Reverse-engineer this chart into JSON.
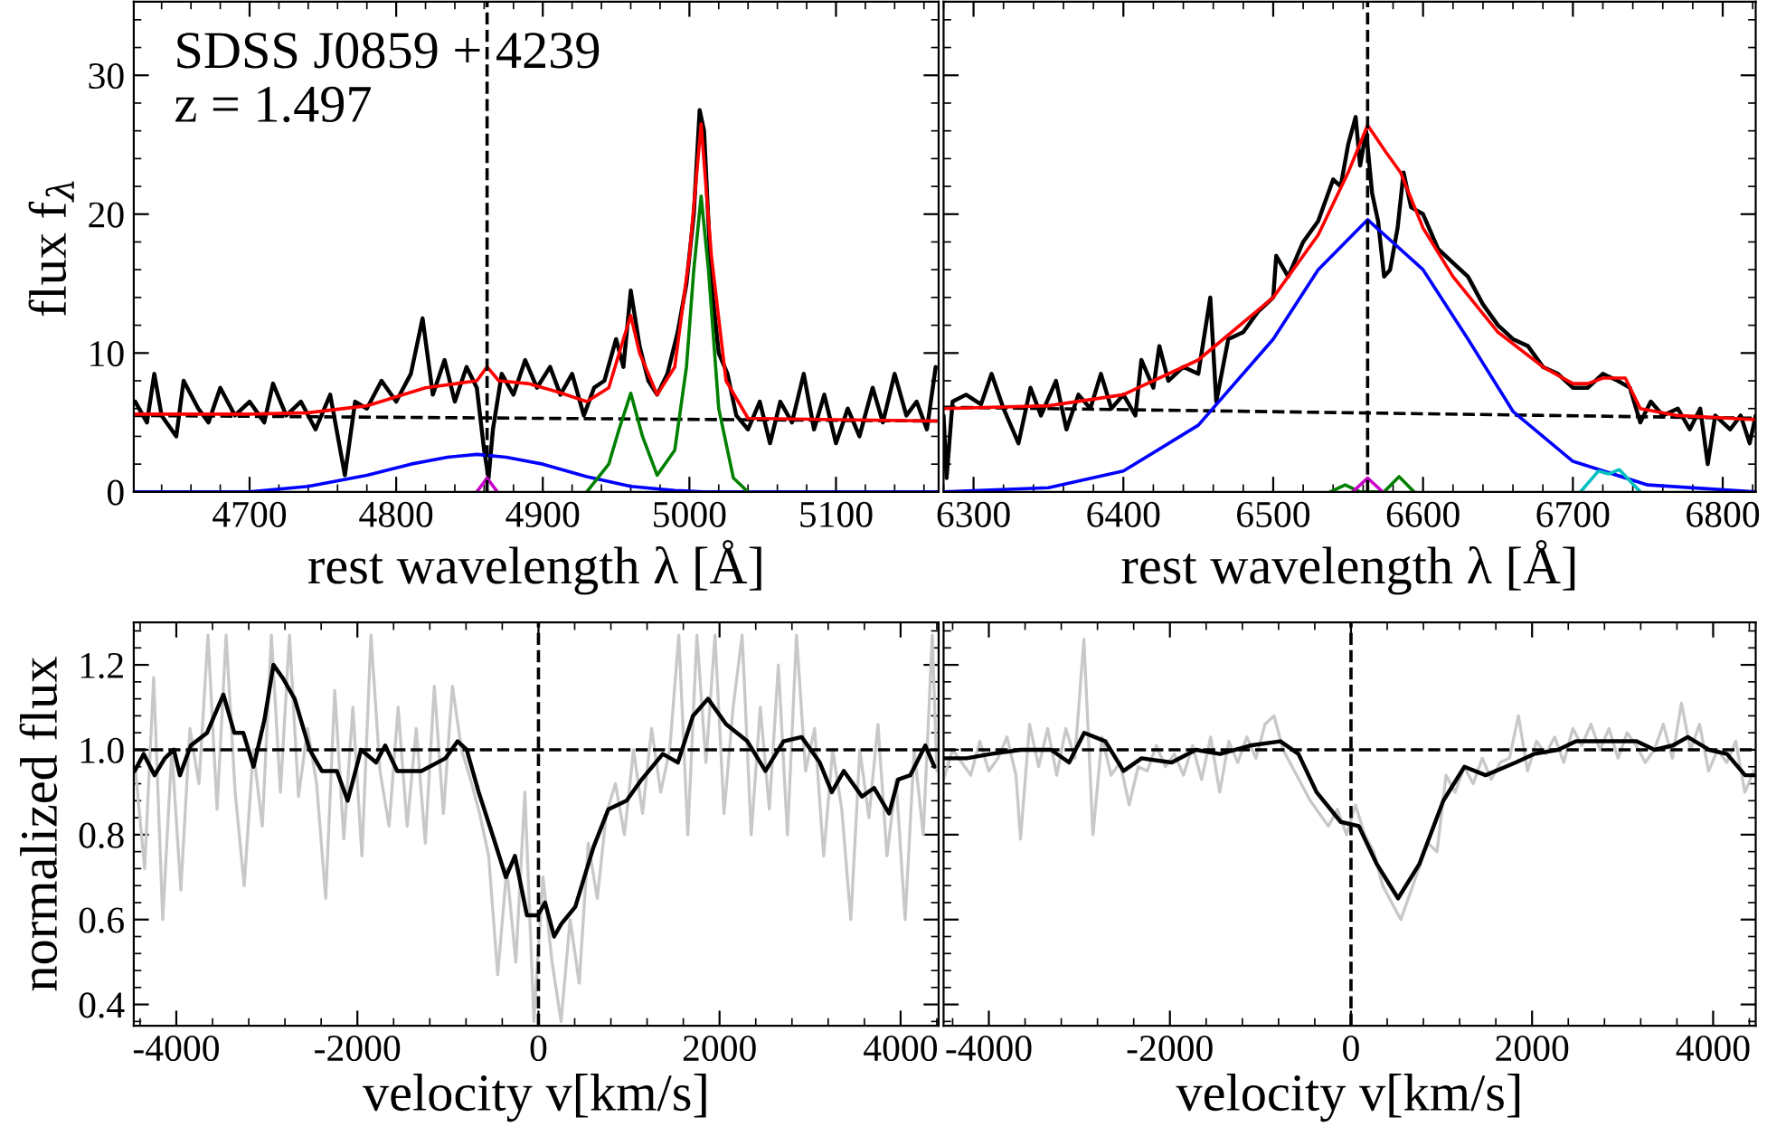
{
  "chart_data": [
    {
      "type": "line",
      "xlabel": "rest wavelength λ [Å]",
      "ylabel": "flux f$_{λ}$",
      "xlim": [
        4621,
        5170
      ],
      "ylim": [
        0,
        35.3
      ],
      "xticks": [
        4700,
        4800,
        4900,
        5000,
        5100
      ],
      "yticks": [
        0,
        10,
        20,
        30
      ],
      "grid": false,
      "marker": "none",
      "annotations": [
        "SDSS J0859 + 4239",
        "z = 1.497"
      ],
      "ref_lines": [
        {
          "axis": "x",
          "value": 4862,
          "color": "#000000",
          "line_style": "dashed"
        }
      ],
      "series": [
        {
          "color": "#000000",
          "x": [
            4622,
            4630,
            4635,
            4640,
            4650,
            4655,
            4665,
            4672,
            4680,
            4690,
            4700,
            4710,
            4716,
            4725,
            4735,
            4745,
            4755,
            4765,
            4772,
            4780,
            4790,
            4800,
            4810,
            4818,
            4825,
            4833,
            4840,
            4848,
            4855,
            4860,
            4863,
            4866,
            4872,
            4880,
            4888,
            4896,
            4905,
            4912,
            4920,
            4928,
            4935,
            4942,
            4950,
            4955,
            4960,
            4966,
            4972,
            4978,
            4985,
            4992,
            4998,
            5003,
            5007,
            5010,
            5015,
            5020,
            5026,
            5032,
            5040,
            5048,
            5055,
            5062,
            5070,
            5078,
            5085,
            5092,
            5100,
            5108,
            5116,
            5125,
            5132,
            5140,
            5148,
            5155,
            5162,
            5168
          ],
          "values": [
            6.5,
            5.0,
            8.5,
            5.5,
            4.0,
            8.0,
            6.0,
            5.0,
            7.5,
            5.5,
            6.5,
            5.0,
            7.8,
            5.5,
            6.5,
            4.5,
            7.0,
            1.2,
            6.5,
            6.0,
            8.0,
            6.5,
            8.5,
            12.5,
            7.0,
            9.5,
            6.5,
            9.0,
            7.5,
            3.0,
            1.0,
            4.5,
            8.5,
            7.0,
            9.5,
            7.5,
            9.0,
            7.0,
            8.5,
            5.5,
            7.5,
            8.0,
            11.0,
            9.0,
            14.5,
            10.5,
            8.0,
            7.0,
            8.5,
            11.5,
            15.0,
            20.0,
            27.5,
            26.0,
            15.0,
            10.0,
            8.5,
            5.5,
            4.5,
            6.5,
            3.5,
            6.5,
            5.0,
            8.5,
            4.5,
            7.0,
            3.5,
            6.0,
            4.0,
            7.5,
            5.0,
            8.5,
            5.5,
            6.5,
            4.5,
            9.0
          ]
        },
        {
          "color": "#000000",
          "line_style": "dashed",
          "x": [
            4621,
            5170
          ],
          "values": [
            5.5,
            5.1
          ]
        },
        {
          "color": "#0000ff",
          "x": [
            4621,
            4700,
            4740,
            4780,
            4810,
            4835,
            4855,
            4875,
            4900,
            4930,
            4960,
            4990,
            5010,
            5170
          ],
          "values": [
            0,
            0,
            0.4,
            1.2,
            2.0,
            2.5,
            2.7,
            2.5,
            2.0,
            1.1,
            0.4,
            0.1,
            0,
            0
          ]
        },
        {
          "color": "#008000",
          "x": [
            4930,
            4945,
            4952,
            4960,
            4968,
            4978,
            4990,
            4998,
            5003,
            5008,
            5013,
            5020,
            5030,
            5040
          ],
          "values": [
            0,
            2.0,
            4.5,
            7.1,
            4.0,
            1.2,
            3.0,
            9.0,
            16.0,
            21.3,
            16.0,
            6.0,
            1.0,
            0
          ]
        },
        {
          "color": "#cc00cc",
          "x": [
            4855,
            4862,
            4869
          ],
          "values": [
            0,
            1.0,
            0
          ]
        },
        {
          "color": "#ff0000",
          "x": [
            4621,
            4700,
            4740,
            4780,
            4820,
            4855,
            4862,
            4870,
            4890,
            4910,
            4930,
            4945,
            4955,
            4960,
            4966,
            4978,
            4990,
            5000,
            5008,
            5015,
            5025,
            5040,
            5100,
            5170
          ],
          "values": [
            5.6,
            5.6,
            5.7,
            6.2,
            7.5,
            8.0,
            9.0,
            8.0,
            7.8,
            7.2,
            6.5,
            7.5,
            11.0,
            12.7,
            10.0,
            7.0,
            9.0,
            17.0,
            26.5,
            17.0,
            8.0,
            5.3,
            5.2,
            5.1
          ]
        }
      ]
    },
    {
      "type": "line",
      "xlabel": "rest wavelength λ [Å]",
      "xlim": [
        6280,
        6822
      ],
      "ylim": [
        0,
        35.3
      ],
      "xticks": [
        6300,
        6400,
        6500,
        6600,
        6700,
        6800
      ],
      "yticks": [
        0,
        10,
        20,
        30
      ],
      "tick_labels": "x",
      "grid": false,
      "marker": "none",
      "ref_lines": [
        {
          "axis": "x",
          "value": 6563,
          "color": "#000000",
          "line_style": "dashed"
        }
      ],
      "series": [
        {
          "color": "#000000",
          "x": [
            6280,
            6282,
            6286,
            6295,
            6305,
            6312,
            6320,
            6330,
            6338,
            6345,
            6355,
            6362,
            6370,
            6378,
            6385,
            6392,
            6400,
            6408,
            6412,
            6420,
            6424,
            6430,
            6440,
            6450,
            6458,
            6462,
            6470,
            6480,
            6490,
            6500,
            6502,
            6510,
            6520,
            6530,
            6540,
            6545,
            6550,
            6555,
            6558,
            6562,
            6566,
            6570,
            6574,
            6578,
            6583,
            6587,
            6592,
            6600,
            6610,
            6620,
            6630,
            6640,
            6650,
            6660,
            6670,
            6680,
            6690,
            6700,
            6710,
            6720,
            6730,
            6738,
            6745,
            6752,
            6760,
            6770,
            6778,
            6785,
            6790,
            6795,
            6805,
            6812,
            6818,
            6822
          ],
          "values": [
            5.5,
            1.0,
            6.5,
            7.0,
            6.3,
            8.5,
            6.0,
            3.5,
            7.5,
            5.5,
            8.0,
            4.5,
            7.0,
            6.0,
            8.5,
            6.0,
            7.0,
            5.5,
            9.5,
            7.5,
            10.5,
            8.0,
            9.0,
            8.5,
            14.0,
            6.5,
            11.0,
            11.5,
            13.0,
            14.0,
            17.0,
            15.5,
            18.0,
            19.5,
            22.5,
            22.0,
            25.0,
            27.0,
            23.5,
            26.0,
            21.5,
            19.5,
            15.5,
            16.0,
            19.0,
            23.0,
            20.5,
            20.0,
            17.5,
            16.5,
            15.5,
            13.5,
            12.0,
            11.0,
            10.5,
            9.0,
            8.5,
            7.5,
            7.5,
            8.5,
            8.0,
            7.5,
            5.0,
            6.5,
            5.5,
            6.0,
            4.5,
            6.0,
            2.0,
            5.5,
            4.5,
            5.5,
            3.5,
            5.5
          ]
        },
        {
          "color": "#000000",
          "line_style": "dashed",
          "x": [
            6280,
            6822
          ],
          "values": [
            6.1,
            5.3
          ]
        },
        {
          "color": "#0000ff",
          "x": [
            6280,
            6350,
            6400,
            6450,
            6500,
            6530,
            6563,
            6600,
            6630,
            6660,
            6700,
            6750,
            6822
          ],
          "values": [
            0,
            0.3,
            1.5,
            4.8,
            11.0,
            16.0,
            19.6,
            16.0,
            11.0,
            5.8,
            2.2,
            0.5,
            0
          ]
        },
        {
          "color": "#008000",
          "x": [
            6538,
            6548,
            6558,
            6574,
            6584,
            6594
          ],
          "values": [
            0,
            0.5,
            0,
            0,
            1.1,
            0
          ]
        },
        {
          "color": "#cc00cc",
          "x": [
            6553,
            6563,
            6573
          ],
          "values": [
            0,
            1.0,
            0
          ]
        },
        {
          "color": "#00bfbf",
          "x": [
            6705,
            6717,
            6724,
            6731,
            6745
          ],
          "values": [
            0,
            1.5,
            1.3,
            1.6,
            0
          ]
        },
        {
          "color": "#ff0000",
          "x": [
            6280,
            6350,
            6400,
            6450,
            6500,
            6530,
            6550,
            6563,
            6575,
            6585,
            6600,
            6620,
            6650,
            6680,
            6700,
            6710,
            6720,
            6735,
            6745,
            6770,
            6822
          ],
          "values": [
            6.0,
            6.2,
            7.0,
            9.5,
            14.0,
            18.5,
            23.0,
            26.4,
            24.5,
            23.0,
            19.0,
            15.5,
            11.5,
            9.0,
            7.8,
            7.8,
            8.2,
            8.2,
            6.0,
            5.5,
            5.2
          ]
        }
      ]
    },
    {
      "type": "line",
      "xlabel": "velocity v[km/s]",
      "ylabel": "normalized flux",
      "xlim": [
        -4470,
        4420
      ],
      "ylim": [
        0.35,
        1.3
      ],
      "xticks": [
        -4000,
        -2000,
        0,
        2000,
        4000
      ],
      "yticks": [
        0.4,
        0.6,
        0.8,
        {
          "value": 1.0,
          "label": "1.0"
        },
        1.2
      ],
      "grid": false,
      "marker": "none",
      "ref_lines": [
        {
          "axis": "y",
          "value": 1.0,
          "color": "#000000",
          "line_style": "dashed"
        },
        {
          "axis": "x",
          "value": 0,
          "color": "#000000",
          "line_style": "dashed"
        }
      ],
      "series": [
        {
          "color": "#c8c8c8",
          "x": [
            -4450,
            -4350,
            -4250,
            -4150,
            -4050,
            -3950,
            -3850,
            -3750,
            -3650,
            -3550,
            -3450,
            -3350,
            -3250,
            -3150,
            -3050,
            -2950,
            -2850,
            -2750,
            -2650,
            -2550,
            -2450,
            -2350,
            -2250,
            -2150,
            -2050,
            -1950,
            -1850,
            -1750,
            -1650,
            -1550,
            -1450,
            -1350,
            -1250,
            -1150,
            -1050,
            -950,
            -850,
            -750,
            -650,
            -550,
            -450,
            -350,
            -250,
            -150,
            -50,
            50,
            150,
            250,
            350,
            450,
            550,
            650,
            750,
            850,
            950,
            1050,
            1150,
            1250,
            1350,
            1450,
            1550,
            1650,
            1750,
            1850,
            1950,
            2050,
            2150,
            2250,
            2350,
            2450,
            2550,
            2650,
            2750,
            2850,
            2950,
            3050,
            3150,
            3250,
            3350,
            3450,
            3550,
            3650,
            3750,
            3850,
            3950,
            4050,
            4150,
            4250,
            4350,
            4400
          ],
          "values": [
            0.95,
            0.72,
            1.17,
            0.6,
            1.0,
            0.67,
            1.05,
            0.92,
            1.27,
            0.86,
            1.27,
            0.9,
            0.68,
            1.0,
            0.82,
            1.27,
            0.9,
            1.27,
            0.89,
            1.05,
            0.92,
            0.65,
            1.14,
            0.79,
            1.1,
            0.75,
            1.27,
            0.95,
            0.82,
            1.1,
            0.82,
            1.05,
            0.78,
            1.15,
            0.85,
            1.15,
            1.0,
            0.93,
            0.85,
            0.75,
            0.47,
            0.72,
            0.5,
            0.9,
            0.36,
            0.7,
            0.5,
            0.36,
            0.6,
            0.45,
            0.78,
            0.65,
            0.85,
            0.92,
            0.8,
            1.0,
            0.85,
            1.05,
            0.9,
            1.0,
            1.27,
            0.8,
            1.27,
            0.97,
            1.27,
            0.85,
            1.1,
            1.27,
            0.8,
            1.1,
            0.86,
            1.2,
            0.8,
            1.27,
            0.95,
            1.05,
            0.75,
            1.0,
            0.86,
            0.6,
            1.0,
            0.84,
            1.06,
            0.75,
            0.93,
            0.6,
            1.0,
            0.8,
            1.27,
            0.95
          ]
        },
        {
          "color": "#000000",
          "x": [
            -4460,
            -4360,
            -4240,
            -4127,
            -4027,
            -3960,
            -3840,
            -3660,
            -3480,
            -3360,
            -3260,
            -3147,
            -3027,
            -2927,
            -2827,
            -2693,
            -2527,
            -2393,
            -2227,
            -2107,
            -1960,
            -1793,
            -1693,
            -1560,
            -1293,
            -1027,
            -893,
            -793,
            -660,
            -493,
            -360,
            -260,
            -127,
            -7,
            73,
            173,
            253,
            407,
            607,
            773,
            973,
            1140,
            1373,
            1540,
            1707,
            1873,
            2073,
            2307,
            2507,
            2707,
            2907,
            3107,
            3240,
            3373,
            3573,
            3707,
            3873,
            3973,
            4107,
            4273,
            4373
          ],
          "values": [
            0.95,
            0.99,
            0.94,
            0.98,
            1.0,
            0.94,
            1.01,
            1.04,
            1.13,
            1.04,
            1.04,
            0.96,
            1.07,
            1.2,
            1.17,
            1.12,
            1.0,
            0.95,
            0.95,
            0.88,
            1.0,
            0.97,
            1.01,
            0.95,
            0.95,
            0.98,
            1.02,
            1.0,
            0.9,
            0.79,
            0.7,
            0.75,
            0.61,
            0.61,
            0.64,
            0.56,
            0.59,
            0.63,
            0.77,
            0.86,
            0.88,
            0.93,
            0.99,
            0.97,
            1.08,
            1.12,
            1.06,
            1.02,
            0.95,
            1.02,
            1.03,
            0.97,
            0.9,
            0.95,
            0.89,
            0.91,
            0.85,
            0.93,
            0.94,
            1.01,
            0.96
          ]
        }
      ]
    },
    {
      "type": "line",
      "xlabel": "velocity v[km/s]",
      "xlim": [
        -4500,
        4470
      ],
      "ylim": [
        0.35,
        1.3
      ],
      "xticks": [
        -4000,
        -2000,
        0,
        2000,
        4000
      ],
      "yticks": [
        0.4,
        0.6,
        0.8,
        1.0,
        1.2
      ],
      "tick_labels": "x",
      "grid": false,
      "marker": "none",
      "ref_lines": [
        {
          "axis": "y",
          "value": 1.0,
          "color": "#000000",
          "line_style": "dashed"
        },
        {
          "axis": "x",
          "value": 0,
          "color": "#000000",
          "line_style": "dashed"
        }
      ],
      "series": [
        {
          "color": "#c8c8c8",
          "x": [
            -4500,
            -4400,
            -4300,
            -4200,
            -4100,
            -4000,
            -3900,
            -3800,
            -3700,
            -3650,
            -3550,
            -3450,
            -3350,
            -3250,
            -3150,
            -3050,
            -2950,
            -2850,
            -2750,
            -2650,
            -2550,
            -2450,
            -2350,
            -2250,
            -2150,
            -2050,
            -1950,
            -1850,
            -1750,
            -1650,
            -1550,
            -1450,
            -1350,
            -1250,
            -1150,
            -1050,
            -950,
            -850,
            -750,
            -650,
            -550,
            -450,
            -350,
            -250,
            -150,
            -50,
            50,
            150,
            250,
            350,
            450,
            550,
            650,
            750,
            850,
            950,
            1050,
            1150,
            1250,
            1350,
            1450,
            1550,
            1650,
            1750,
            1850,
            1950,
            2050,
            2150,
            2250,
            2350,
            2450,
            2550,
            2650,
            2750,
            2850,
            2950,
            3050,
            3150,
            3250,
            3350,
            3450,
            3550,
            3650,
            3750,
            3850,
            3950,
            4050,
            4150,
            4250,
            4350,
            4450
          ],
          "values": [
            0.93,
            1.0,
            0.97,
            0.94,
            1.02,
            0.95,
            0.98,
            1.03,
            0.94,
            0.79,
            1.06,
            0.96,
            1.05,
            0.94,
            1.05,
            0.98,
            1.26,
            0.8,
            1.03,
            0.94,
            0.97,
            0.87,
            0.96,
            0.95,
            1.01,
            0.96,
            0.99,
            0.94,
            1.01,
            0.93,
            1.03,
            0.9,
            1.02,
            0.97,
            1.03,
            0.98,
            1.06,
            1.08,
            1.0,
            0.96,
            0.92,
            0.88,
            0.85,
            0.82,
            0.86,
            0.8,
            0.87,
            0.8,
            0.76,
            0.68,
            0.64,
            0.6,
            0.66,
            0.72,
            0.78,
            0.76,
            0.94,
            0.9,
            0.96,
            0.92,
            0.98,
            0.93,
            0.97,
            0.98,
            1.08,
            0.95,
            1.02,
            0.99,
            1.03,
            0.97,
            1.05,
            1.01,
            1.06,
            1.0,
            1.05,
            0.98,
            1.04,
            1.01,
            0.97,
            1.0,
            1.06,
            0.98,
            1.11,
            1.0,
            1.06,
            0.95,
            1.0,
            0.97,
            1.02,
            0.9,
            0.95
          ]
        },
        {
          "color": "#000000",
          "x": [
            -4500,
            -4247,
            -3980,
            -3647,
            -3313,
            -3113,
            -2947,
            -2713,
            -2513,
            -2313,
            -1980,
            -1713,
            -1447,
            -1113,
            -780,
            -580,
            -380,
            -113,
            87,
            287,
            520,
            753,
            1020,
            1253,
            1487,
            1820,
            2020,
            2287,
            2487,
            2820,
            3153,
            3353,
            3553,
            3720,
            3953,
            4153,
            4353,
            4453
          ],
          "values": [
            0.98,
            0.98,
            0.99,
            1.0,
            1.0,
            0.97,
            1.04,
            1.02,
            0.95,
            0.98,
            0.97,
            1.0,
            0.99,
            1.01,
            1.02,
            0.99,
            0.9,
            0.83,
            0.82,
            0.73,
            0.65,
            0.73,
            0.88,
            0.96,
            0.94,
            0.97,
            0.99,
            1.0,
            1.02,
            1.02,
            1.02,
            1.0,
            1.01,
            1.03,
            1.0,
            0.99,
            0.94,
            0.94
          ]
        }
      ]
    }
  ]
}
